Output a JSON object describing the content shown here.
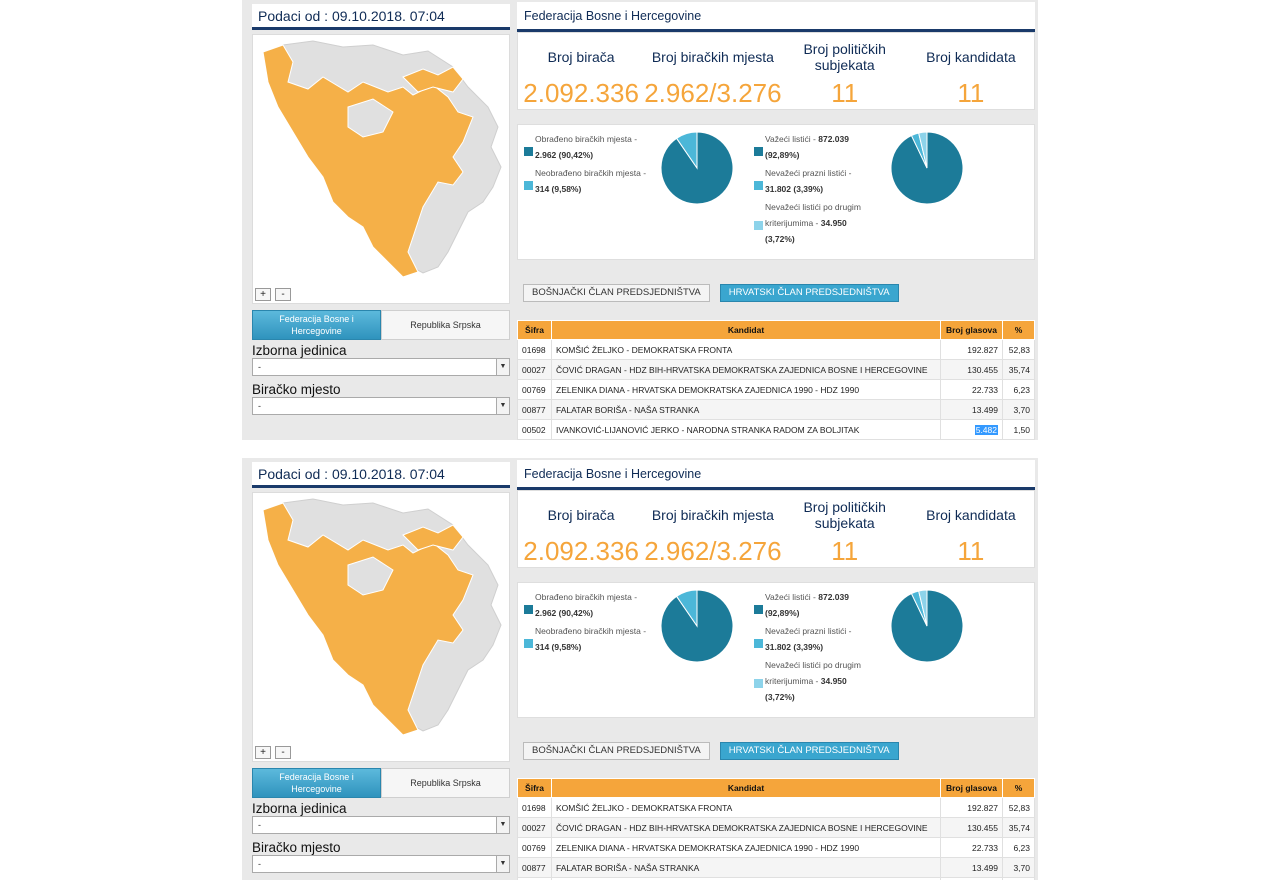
{
  "date_label": "Podaci od : 09.10.2018. 07:04",
  "entity_title": "Federacija Bosne i Hercegovine",
  "stats": [
    {
      "label": "Broj birača",
      "value": "2.092.336"
    },
    {
      "label": "Broj biračkih mjesta",
      "value": "2.962/3.276"
    },
    {
      "label": "Broj političkih subjekata",
      "value": "11"
    },
    {
      "label": "Broj kandidata",
      "value": "11"
    }
  ],
  "legend1": [
    {
      "line1": "Obrađeno biračkih mjesta -",
      "line2": "2.962 (90,42%)",
      "color": "#1c7b99"
    },
    {
      "line1": "Neobrađeno biračkih mjesta -",
      "line2": "314 (9,58%)",
      "color": "#4cb7d8"
    }
  ],
  "legend2": [
    {
      "line1": "Važeći listići -",
      "bold1": "872.039",
      "line2": "(92,89%)",
      "color": "#1c7b99"
    },
    {
      "line1": "Nevažeći prazni listići -",
      "line2": "31.802 (3,39%)",
      "color": "#4cb7d8"
    },
    {
      "line0": "Nevažeći listići po drugim",
      "line1": "kriterijumima -",
      "bold1": "34.950",
      "line2": "(3,72%)",
      "color": "#8dd3ea"
    }
  ],
  "pie1": [
    90.42,
    9.58
  ],
  "pie2": [
    92.89,
    3.39,
    3.72
  ],
  "zoom": {
    "plus": "+",
    "minus": "-"
  },
  "entities": {
    "fbih": "Federacija Bosne i Hercegovine",
    "rs": "Republika Srpska"
  },
  "izborna_jedinica": {
    "label": "Izborna jedinica",
    "value": "-"
  },
  "biracko_mjesto": {
    "label": "Biračko mjesto",
    "value": "-"
  },
  "buttons": {
    "bosnjacki": "BOŠNJAČKI ČLAN PREDSJEDNIŠTVA",
    "hrvatski": "HRVATSKI ČLAN PREDSJEDNIŠTVA"
  },
  "table": {
    "headers": [
      "Šifra",
      "Kandidat",
      "Broj glasova",
      "%"
    ],
    "rows": [
      [
        "01698",
        "KOMŠIĆ ŽELJKO - DEMOKRATSKA FRONTA",
        "192.827",
        "52,83"
      ],
      [
        "00027",
        "ČOVIĆ DRAGAN - HDZ BIH-HRVATSKA DEMOKRATSKA ZAJEDNICA BOSNE I HERCEGOVINE",
        "130.455",
        "35,74"
      ],
      [
        "00769",
        "ZELENIKA DIANA - HRVATSKA DEMOKRATSKA ZAJEDNICA 1990 - HDZ 1990",
        "22.733",
        "6,23"
      ],
      [
        "00877",
        "FALATAR BORIŠA - NAŠA STRANKA",
        "13.499",
        "3,70"
      ],
      [
        "00502",
        "IVANKOVIĆ-LIJANOVIĆ JERKO - NARODNA STRANKA RADOM ZA BOLJITAK",
        "5.482",
        "1,50"
      ]
    ]
  },
  "colors": {
    "accent": "#f5a53b",
    "navy": "#0f2b55",
    "pie_main": "#1c7b99",
    "pie_light": "#4cb7d8"
  }
}
